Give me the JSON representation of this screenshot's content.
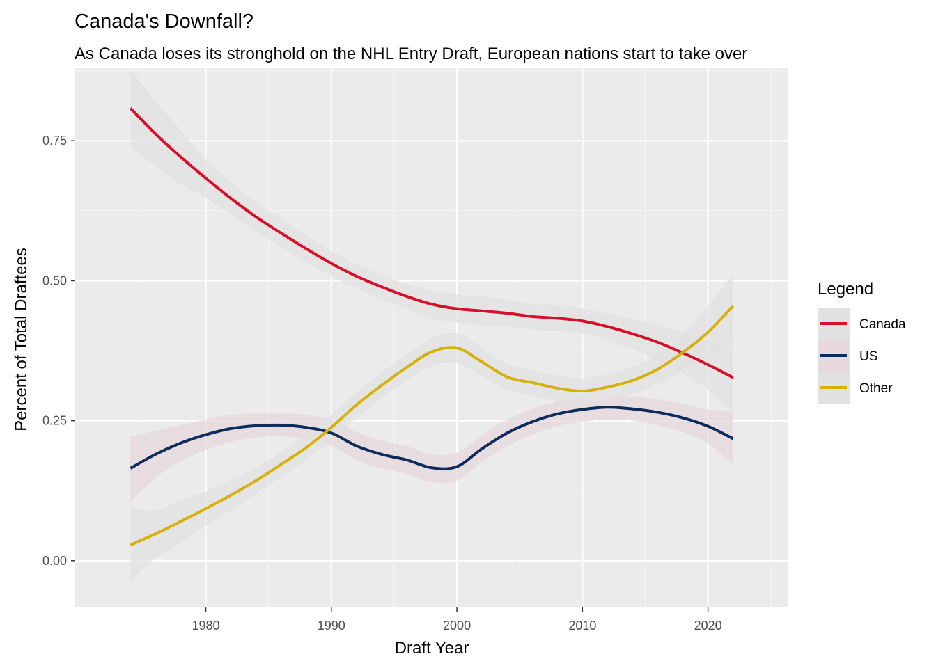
{
  "chart_data": {
    "type": "line",
    "title": "Canada's Downfall?",
    "subtitle": "As Canada loses its stronghold on the NHL Entry Draft, European nations start to take over",
    "xlabel": "Draft Year",
    "ylabel": "Percent of Total Draftees",
    "xlim": [
      1969.6,
      2026.4
    ],
    "ylim": [
      -0.0835,
      0.8795
    ],
    "x_ticks": [
      1980,
      1990,
      2000,
      2010,
      2020
    ],
    "x_tick_labels": [
      "1980",
      "1990",
      "2000",
      "2010",
      "2020"
    ],
    "y_ticks": [
      0.0,
      0.25,
      0.5,
      0.75
    ],
    "y_tick_labels": [
      "0.00",
      "0.25",
      "0.50",
      "0.75"
    ],
    "grid": true,
    "legend": {
      "title": "Legend",
      "position": "right"
    },
    "x": [
      1974,
      1976,
      1978,
      1980,
      1982,
      1984,
      1986,
      1988,
      1990,
      1992,
      1994,
      1996,
      1998,
      2000,
      2002,
      2004,
      2006,
      2008,
      2010,
      2012,
      2014,
      2016,
      2018,
      2020,
      2022
    ],
    "series": [
      {
        "name": "Canada",
        "color": "#d80f2a",
        "band_color": "#e2e2e2",
        "values": [
          0.808,
          0.762,
          0.721,
          0.683,
          0.647,
          0.614,
          0.585,
          0.557,
          0.531,
          0.508,
          0.489,
          0.472,
          0.458,
          0.45,
          0.446,
          0.442,
          0.436,
          0.433,
          0.428,
          0.418,
          0.405,
          0.39,
          0.371,
          0.35,
          0.327
        ],
        "lower": [
          0.738,
          0.705,
          0.672,
          0.648,
          0.618,
          0.588,
          0.56,
          0.533,
          0.508,
          0.486,
          0.467,
          0.45,
          0.433,
          0.425,
          0.42,
          0.418,
          0.413,
          0.41,
          0.405,
          0.395,
          0.378,
          0.358,
          0.335,
          0.305,
          0.262
        ],
        "upper": [
          0.878,
          0.82,
          0.77,
          0.718,
          0.676,
          0.64,
          0.61,
          0.581,
          0.554,
          0.53,
          0.511,
          0.494,
          0.483,
          0.475,
          0.472,
          0.466,
          0.459,
          0.456,
          0.451,
          0.441,
          0.432,
          0.422,
          0.407,
          0.395,
          0.392
        ]
      },
      {
        "name": "US",
        "color": "#0d2b5c",
        "band_color": "#e6d8dc",
        "values": [
          0.165,
          0.19,
          0.21,
          0.225,
          0.236,
          0.241,
          0.242,
          0.238,
          0.228,
          0.205,
          0.19,
          0.18,
          0.166,
          0.168,
          0.2,
          0.228,
          0.248,
          0.262,
          0.27,
          0.274,
          0.271,
          0.265,
          0.255,
          0.24,
          0.218
        ],
        "lower": [
          0.105,
          0.148,
          0.178,
          0.198,
          0.212,
          0.22,
          0.222,
          0.217,
          0.205,
          0.18,
          0.165,
          0.155,
          0.14,
          0.143,
          0.176,
          0.205,
          0.225,
          0.24,
          0.248,
          0.252,
          0.25,
          0.242,
          0.23,
          0.21,
          0.17
        ],
        "upper": [
          0.222,
          0.232,
          0.242,
          0.252,
          0.26,
          0.264,
          0.264,
          0.26,
          0.25,
          0.23,
          0.215,
          0.205,
          0.19,
          0.193,
          0.224,
          0.252,
          0.271,
          0.284,
          0.292,
          0.296,
          0.293,
          0.288,
          0.28,
          0.27,
          0.265
        ]
      },
      {
        "name": "Other",
        "color": "#d6b10a",
        "band_color": "#e2e2e2",
        "values": [
          0.028,
          0.048,
          0.07,
          0.093,
          0.117,
          0.143,
          0.172,
          0.202,
          0.238,
          0.278,
          0.313,
          0.345,
          0.373,
          0.38,
          0.355,
          0.328,
          0.318,
          0.308,
          0.303,
          0.31,
          0.322,
          0.342,
          0.372,
          0.408,
          0.455
        ],
        "lower": [
          -0.038,
          0.005,
          0.032,
          0.062,
          0.09,
          0.12,
          0.15,
          0.18,
          0.215,
          0.255,
          0.29,
          0.322,
          0.348,
          0.353,
          0.33,
          0.305,
          0.295,
          0.285,
          0.28,
          0.287,
          0.298,
          0.315,
          0.338,
          0.36,
          0.388
        ],
        "upper": [
          0.095,
          0.09,
          0.108,
          0.124,
          0.144,
          0.166,
          0.194,
          0.224,
          0.261,
          0.301,
          0.336,
          0.368,
          0.398,
          0.407,
          0.38,
          0.351,
          0.341,
          0.331,
          0.326,
          0.333,
          0.346,
          0.369,
          0.406,
          0.456,
          0.512
        ]
      }
    ]
  }
}
